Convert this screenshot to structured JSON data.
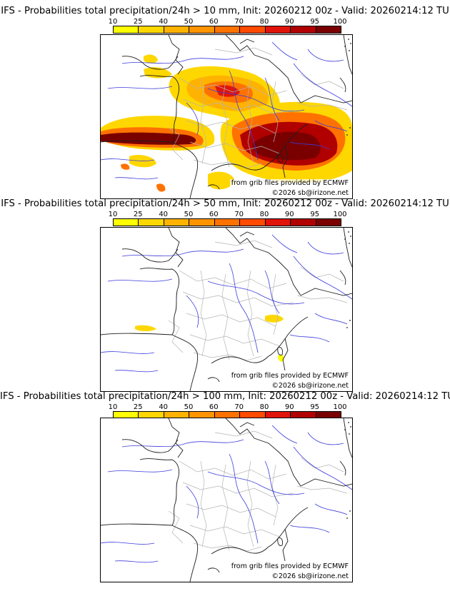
{
  "scale": {
    "ticks": [
      "10",
      "25",
      "40",
      "50",
      "60",
      "70",
      "80",
      "90",
      "95",
      "100"
    ],
    "colors": [
      "#ffff00",
      "#ffd700",
      "#ffb300",
      "#ff9400",
      "#ff7200",
      "#ff4a00",
      "#e0140a",
      "#b00000",
      "#7a0000"
    ]
  },
  "panels": [
    {
      "title": "IFS - Probabilities total precipitation/24h > 10 mm, Init: 20260212 00z - Valid: 20260214:12 TU",
      "source": "from grib files provided by ECMWF",
      "copyright": "©2026 sb@irizone.net"
    },
    {
      "title": "IFS - Probabilities total precipitation/24h > 50 mm, Init: 20260212 00z - Valid: 20260214:12 TU",
      "source": "from grib files provided by ECMWF",
      "copyright": "©2026 sb@irizone.net"
    },
    {
      "title": "IFS - Probabilities total precipitation/24h > 100 mm, Init: 20260212 00z - Valid: 20260214:12 TU",
      "source": "from grib files provided by ECMWF",
      "copyright": "©2026 sb@irizone.net"
    }
  ]
}
